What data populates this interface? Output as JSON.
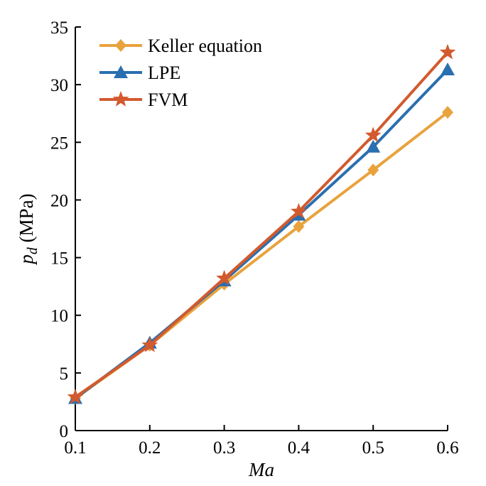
{
  "chart_data": {
    "type": "line",
    "title": "",
    "xlabel": "Ma",
    "ylabel_main": "p",
    "ylabel_sub": "d",
    "ylabel_unit": " (MPa)",
    "x": [
      0.1,
      0.2,
      0.3,
      0.4,
      0.5,
      0.6
    ],
    "xlim": [
      0.1,
      0.6
    ],
    "ylim": [
      0,
      35
    ],
    "x_ticks": [
      "0.1",
      "0.2",
      "0.3",
      "0.4",
      "0.5",
      "0.6"
    ],
    "y_ticks": [
      "0",
      "5",
      "10",
      "15",
      "20",
      "25",
      "30",
      "35"
    ],
    "grid": false,
    "legend_position": "top-left",
    "series": [
      {
        "name": "Keller equation",
        "marker": "diamond",
        "color": "#E8A33D",
        "values": [
          2.8,
          7.4,
          12.7,
          17.7,
          22.6,
          27.6
        ]
      },
      {
        "name": "LPE",
        "marker": "triangle",
        "color": "#2A6FB0",
        "values": [
          2.8,
          7.6,
          13.0,
          18.7,
          24.6,
          31.3
        ]
      },
      {
        "name": "FVM",
        "marker": "star",
        "color": "#D25A2E",
        "values": [
          2.9,
          7.4,
          13.2,
          19.0,
          25.6,
          32.8
        ]
      }
    ]
  }
}
